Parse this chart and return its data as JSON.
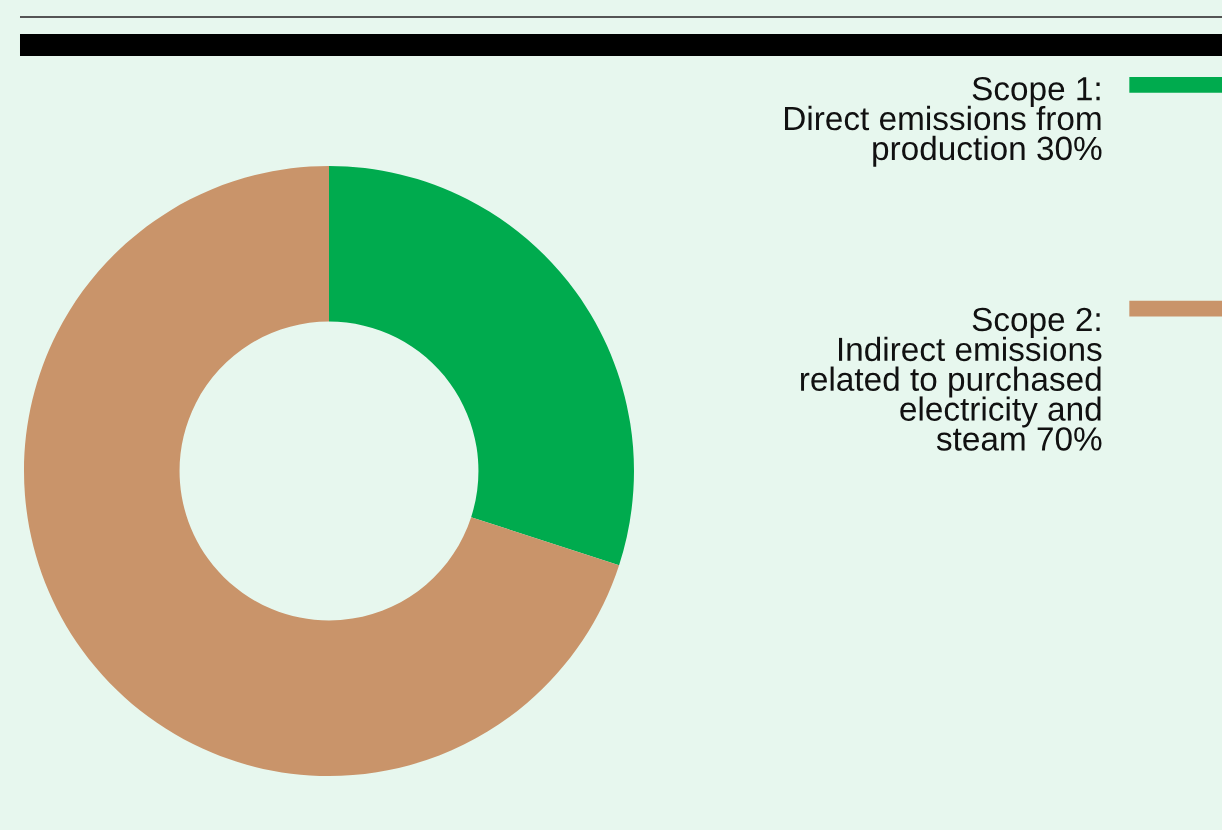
{
  "chart_data": {
    "type": "donut",
    "categories": [
      "Scope 1:\nDirect emissions from\nproduction 30%",
      "Scope 2:\nIndirect emissions\nrelated to purchased\nelectricity and\nsteam 70%"
    ],
    "values": [
      30,
      70
    ],
    "colors": [
      "#00ab4e",
      "#c9946a"
    ],
    "legend": "right"
  }
}
